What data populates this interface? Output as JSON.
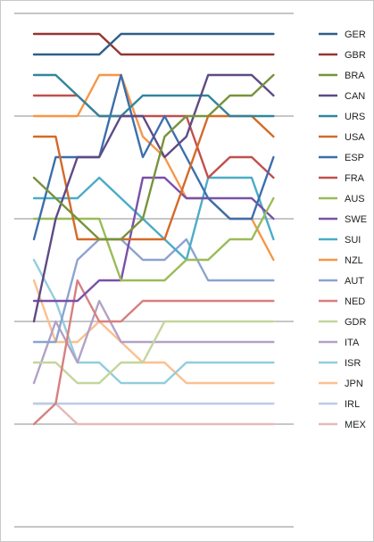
{
  "chart_data": {
    "type": "line",
    "title": "",
    "xlabel": "",
    "ylabel": "",
    "x": [
      1,
      2,
      3,
      4,
      5,
      6,
      7,
      8,
      9,
      10,
      11,
      12
    ],
    "ylim": [
      1,
      20
    ],
    "y_inverted": true,
    "grid": "horizontal",
    "legend_position": "right",
    "series": [
      {
        "name": "GER",
        "color": "#2f5d8a",
        "values": [
          2,
          2,
          2,
          2,
          1,
          1,
          1,
          1,
          1,
          1,
          1,
          1
        ]
      },
      {
        "name": "GBR",
        "color": "#943634",
        "values": [
          1,
          1,
          1,
          1,
          2,
          2,
          2,
          2,
          2,
          2,
          2,
          2
        ]
      },
      {
        "name": "BRA",
        "color": "#77933c",
        "values": [
          8,
          9,
          10,
          11,
          11,
          10,
          6,
          5,
          5,
          4,
          4,
          3
        ]
      },
      {
        "name": "CAN",
        "color": "#5f4a85",
        "values": [
          15,
          10,
          7,
          7,
          5,
          5,
          7,
          6,
          3,
          3,
          3,
          4
        ]
      },
      {
        "name": "URS",
        "color": "#31859c",
        "values": [
          3,
          3,
          4,
          5,
          5,
          4,
          4,
          4,
          4,
          5,
          5,
          5
        ]
      },
      {
        "name": "USA",
        "color": "#d46a28",
        "values": [
          6,
          6,
          11,
          11,
          11,
          11,
          11,
          8,
          5,
          5,
          5,
          6
        ]
      },
      {
        "name": "ESP",
        "color": "#3c6eac",
        "values": [
          11,
          7,
          7,
          7,
          3,
          7,
          5,
          7,
          9,
          10,
          10,
          7
        ]
      },
      {
        "name": "FRA",
        "color": "#c0504d",
        "values": [
          4,
          4,
          4,
          5,
          5,
          5,
          5,
          5,
          8,
          7,
          7,
          8
        ]
      },
      {
        "name": "AUS",
        "color": "#9bbb59",
        "values": [
          10,
          10,
          10,
          10,
          13,
          13,
          13,
          12,
          12,
          11,
          11,
          9
        ]
      },
      {
        "name": "SWE",
        "color": "#7851a9",
        "values": [
          14,
          14,
          14,
          13,
          13,
          8,
          8,
          9,
          9,
          9,
          9,
          10
        ]
      },
      {
        "name": "SUI",
        "color": "#4bacc6",
        "values": [
          9,
          9,
          9,
          8,
          9,
          10,
          11,
          12,
          8,
          8,
          8,
          11
        ]
      },
      {
        "name": "NZL",
        "color": "#f79646",
        "values": [
          5,
          5,
          5,
          3,
          3,
          6,
          7,
          9,
          9,
          10,
          10,
          12
        ]
      },
      {
        "name": "AUT",
        "color": "#8da3cf",
        "values": [
          16,
          16,
          12,
          11,
          11,
          12,
          12,
          11,
          13,
          13,
          13,
          13
        ]
      },
      {
        "name": "NED",
        "color": "#d7807f",
        "values": [
          20,
          19,
          13,
          15,
          15,
          14,
          14,
          14,
          14,
          14,
          14,
          14
        ]
      },
      {
        "name": "GDR",
        "color": "#c3d69b",
        "values": [
          17,
          17,
          18,
          18,
          17,
          17,
          15,
          15,
          15,
          15,
          15,
          15
        ]
      },
      {
        "name": "ITA",
        "color": "#b2a1c7",
        "values": [
          18,
          15,
          17,
          14,
          16,
          16,
          16,
          16,
          16,
          16,
          16,
          16
        ]
      },
      {
        "name": "ISR",
        "color": "#92cddc",
        "values": [
          12,
          14,
          17,
          17,
          18,
          18,
          18,
          17,
          17,
          17,
          17,
          17
        ]
      },
      {
        "name": "JPN",
        "color": "#fac090",
        "values": [
          13,
          16,
          16,
          15,
          16,
          17,
          17,
          18,
          18,
          18,
          18,
          18
        ]
      },
      {
        "name": "IRL",
        "color": "#b9cde5",
        "values": [
          19,
          19,
          19,
          19,
          19,
          19,
          19,
          19,
          19,
          19,
          19,
          19
        ]
      },
      {
        "name": "MEX",
        "color": "#e6b9b8",
        "values": [
          19,
          19,
          20,
          20,
          20,
          20,
          20,
          20,
          20,
          20,
          20,
          20
        ]
      }
    ]
  }
}
